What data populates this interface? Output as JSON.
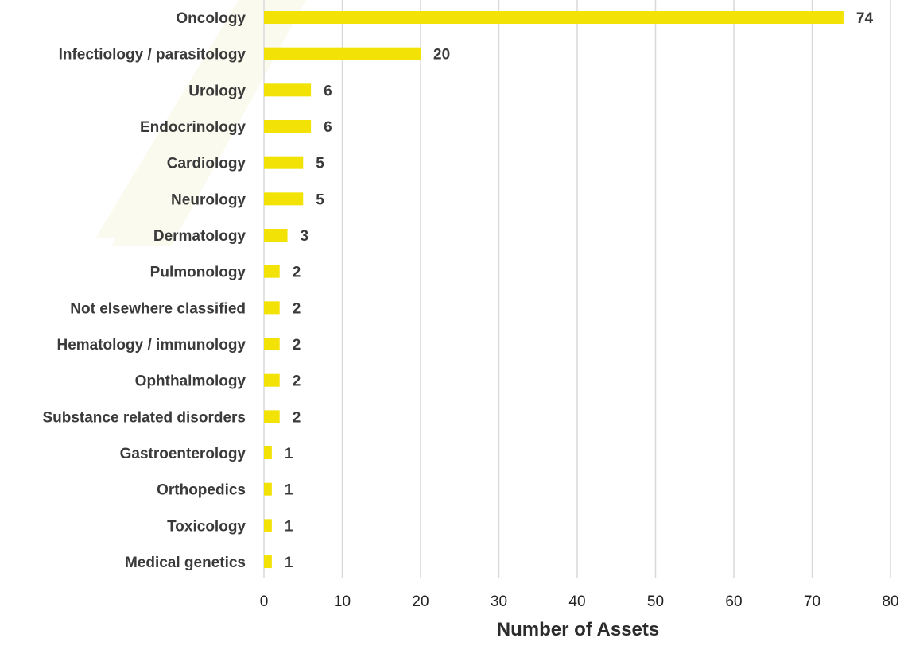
{
  "chart_data": {
    "type": "bar",
    "orientation": "horizontal",
    "categories": [
      "Oncology",
      "Infectiology / parasitology",
      "Urology",
      "Endocrinology",
      "Cardiology",
      "Neurology",
      "Dermatology",
      "Pulmonology",
      "Not elsewhere classified",
      "Hematology / immunology",
      "Ophthalmology",
      "Substance related disorders",
      "Gastroenterology",
      "Orthopedics",
      "Toxicology",
      "Medical genetics"
    ],
    "values": [
      74,
      20,
      6,
      6,
      5,
      5,
      3,
      2,
      2,
      2,
      2,
      2,
      1,
      1,
      1,
      1
    ],
    "xlabel": "Number of Assets",
    "ylabel": "",
    "xlim": [
      0,
      80
    ],
    "xticks": [
      0,
      10,
      20,
      30,
      40,
      50,
      60,
      70,
      80
    ],
    "grid": "vertical",
    "legend": "none",
    "colors": {
      "bar": "#f2e205",
      "watermark": "#fbfaee",
      "gridline": "#d9d9d9",
      "text": "#3a3a3a"
    }
  }
}
